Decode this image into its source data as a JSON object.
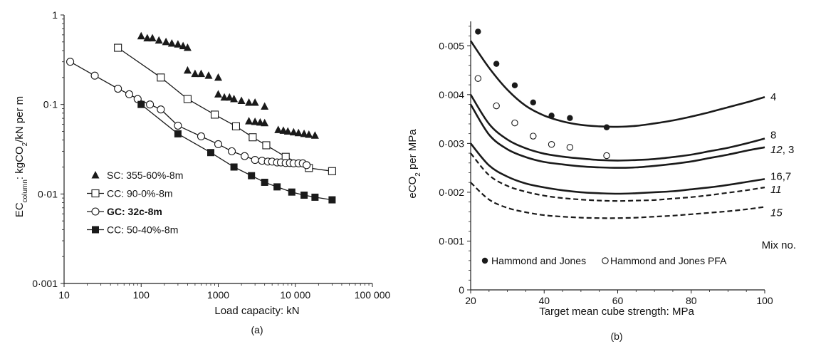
{
  "chart_data": [
    {
      "type": "line",
      "caption": "(a)",
      "xlabel": "Load capacity: kN",
      "ylabel": {
        "base": "EC",
        "sub": "column",
        "rest_pre": ": kgCO",
        "sub2": "2",
        "rest_post": "/kN per m"
      },
      "xscale": "log",
      "yscale": "log",
      "xlim": [
        10,
        100000
      ],
      "ylim": [
        0.001,
        1
      ],
      "x_ticks": [
        10,
        100,
        1000,
        10000,
        100000
      ],
      "x_tick_labels": [
        "10",
        "100",
        "1000",
        "10 000",
        "100 000"
      ],
      "y_ticks": [
        0.001,
        0.01,
        0.1,
        1
      ],
      "y_tick_labels": [
        "0·001",
        "0·01",
        "0·1",
        "1"
      ],
      "legend_position": "bottom-left",
      "series": [
        {
          "name": "SC: 355-60%-8m",
          "marker": "filled-triangle",
          "line": false,
          "x": [
            100,
            120,
            140,
            170,
            210,
            250,
            300,
            350,
            400,
            400,
            500,
            600,
            750,
            1000,
            1000,
            1200,
            1400,
            1600,
            2000,
            2500,
            3000,
            4000,
            2500,
            3000,
            3500,
            4000,
            6000,
            7000,
            8000,
            9500,
            11000,
            13000,
            15000,
            18000
          ],
          "y": [
            0.58,
            0.55,
            0.55,
            0.52,
            0.5,
            0.48,
            0.47,
            0.45,
            0.43,
            0.24,
            0.22,
            0.22,
            0.21,
            0.2,
            0.13,
            0.12,
            0.12,
            0.115,
            0.11,
            0.105,
            0.105,
            0.095,
            0.065,
            0.064,
            0.063,
            0.062,
            0.052,
            0.051,
            0.05,
            0.049,
            0.048,
            0.047,
            0.046,
            0.045
          ]
        },
        {
          "name": "CC: 90-0%-8m",
          "marker": "open-square",
          "line": true,
          "x": [
            50,
            180,
            400,
            900,
            1700,
            2800,
            4200,
            7500,
            15000,
            30000
          ],
          "y": [
            0.43,
            0.2,
            0.115,
            0.077,
            0.057,
            0.043,
            0.035,
            0.026,
            0.0195,
            0.018
          ]
        },
        {
          "name": "GC: 32c-8m",
          "marker": "open-circle",
          "line": true,
          "x": [
            12,
            25,
            50,
            70,
            90,
            130,
            180,
            300,
            600,
            1000,
            1500,
            2200,
            3000,
            3700,
            4400,
            5000,
            5800,
            6500,
            7500,
            8500,
            9500,
            11000,
            12500,
            14000
          ],
          "y": [
            0.3,
            0.21,
            0.15,
            0.13,
            0.115,
            0.1,
            0.088,
            0.058,
            0.044,
            0.036,
            0.03,
            0.0265,
            0.024,
            0.0235,
            0.023,
            0.023,
            0.0225,
            0.0225,
            0.0222,
            0.0222,
            0.022,
            0.022,
            0.022,
            0.021
          ]
        },
        {
          "name": "CC: 50-40%-8m",
          "marker": "filled-square",
          "line": true,
          "x": [
            100,
            300,
            800,
            1600,
            2700,
            4000,
            5800,
            9000,
            13000,
            18000,
            30000
          ],
          "y": [
            0.1,
            0.047,
            0.029,
            0.02,
            0.016,
            0.0135,
            0.012,
            0.0105,
            0.0097,
            0.0092,
            0.0086
          ]
        }
      ]
    },
    {
      "type": "line",
      "caption": "(b)",
      "xlabel": "Target mean cube strength: MPa",
      "ylabel": {
        "base": "eCO",
        "sub": "2",
        "rest": " per MPa"
      },
      "xlim": [
        20,
        100
      ],
      "ylim": [
        0,
        0.0055
      ],
      "x_ticks": [
        20,
        40,
        60,
        80,
        100
      ],
      "x_tick_labels": [
        "20",
        "40",
        "60",
        "80",
        "100"
      ],
      "y_ticks": [
        0,
        0.001,
        0.002,
        0.003,
        0.004,
        0.005
      ],
      "y_tick_labels": [
        "0",
        "0·001",
        "0·002",
        "0·003",
        "0·004",
        "0·005"
      ],
      "mix_header": "Mix no.",
      "curves": [
        {
          "label": "4",
          "italic": false,
          "dashed": false,
          "x": [
            20,
            25,
            30,
            35,
            40,
            45,
            50,
            55,
            60,
            65,
            70,
            75,
            80,
            85,
            90,
            95,
            100
          ],
          "y": [
            0.0051,
            0.00455,
            0.0041,
            0.00377,
            0.00357,
            0.00345,
            0.00338,
            0.00335,
            0.00334,
            0.00336,
            0.00341,
            0.00347,
            0.00355,
            0.00364,
            0.00374,
            0.00384,
            0.00395
          ]
        },
        {
          "label": "8",
          "italic": false,
          "dashed": false,
          "x": [
            20,
            25,
            30,
            35,
            40,
            45,
            50,
            55,
            60,
            65,
            70,
            75,
            80,
            85,
            90,
            95,
            100
          ],
          "y": [
            0.004,
            0.0034,
            0.00308,
            0.0029,
            0.00279,
            0.00273,
            0.00269,
            0.00266,
            0.00265,
            0.00266,
            0.00268,
            0.00272,
            0.00277,
            0.00284,
            0.00291,
            0.003,
            0.0031
          ]
        },
        {
          "label": "12",
          "label_suffix": ", 3",
          "italic": true,
          "dashed": false,
          "x": [
            20,
            25,
            30,
            35,
            40,
            45,
            50,
            55,
            60,
            65,
            70,
            75,
            80,
            85,
            90,
            95,
            100
          ],
          "y": [
            0.0038,
            0.00318,
            0.00288,
            0.00272,
            0.00262,
            0.00257,
            0.00253,
            0.00251,
            0.0025,
            0.00251,
            0.00254,
            0.00258,
            0.00263,
            0.0027,
            0.00277,
            0.00285,
            0.00292
          ]
        },
        {
          "label": "16",
          "label_suffix": ",7",
          "italic": false,
          "dashed": false,
          "x": [
            20,
            25,
            30,
            35,
            40,
            45,
            50,
            55,
            60,
            65,
            70,
            75,
            80,
            85,
            90,
            95,
            100
          ],
          "y": [
            0.003,
            0.00255,
            0.00232,
            0.00218,
            0.0021,
            0.00204,
            0.002,
            0.00198,
            0.00197,
            0.00198,
            0.002,
            0.00202,
            0.00206,
            0.0021,
            0.00215,
            0.00221,
            0.00227
          ]
        },
        {
          "label": "11",
          "italic": true,
          "dashed": true,
          "x": [
            20,
            25,
            30,
            35,
            40,
            45,
            50,
            55,
            60,
            65,
            70,
            75,
            80,
            85,
            90,
            95,
            100
          ],
          "y": [
            0.0028,
            0.00235,
            0.00213,
            0.00201,
            0.00193,
            0.00188,
            0.00185,
            0.00183,
            0.00182,
            0.00183,
            0.00184,
            0.00187,
            0.0019,
            0.00194,
            0.00199,
            0.00204,
            0.0021
          ]
        },
        {
          "label": "15",
          "italic": true,
          "dashed": true,
          "x": [
            20,
            25,
            30,
            35,
            40,
            45,
            50,
            55,
            60,
            65,
            70,
            75,
            80,
            85,
            90,
            95,
            100
          ],
          "y": [
            0.0022,
            0.00185,
            0.00168,
            0.00159,
            0.00153,
            0.0015,
            0.00148,
            0.00147,
            0.00147,
            0.00148,
            0.0015,
            0.00152,
            0.00155,
            0.00158,
            0.00161,
            0.00165,
            0.0017
          ]
        }
      ],
      "points": [
        {
          "name": "Hammond and Jones",
          "marker": "filled-circle",
          "x": [
            22,
            27,
            32,
            37,
            42,
            47,
            57
          ],
          "y": [
            0.00529,
            0.00463,
            0.00419,
            0.00384,
            0.00357,
            0.00352,
            0.00333
          ]
        },
        {
          "name": "Hammond and Jones PFA",
          "marker": "open-circle",
          "x": [
            22,
            27,
            32,
            37,
            42,
            47,
            57
          ],
          "y": [
            0.00433,
            0.00377,
            0.00342,
            0.00315,
            0.00298,
            0.00292,
            0.00275
          ]
        }
      ],
      "legend_position": "bottom"
    }
  ]
}
